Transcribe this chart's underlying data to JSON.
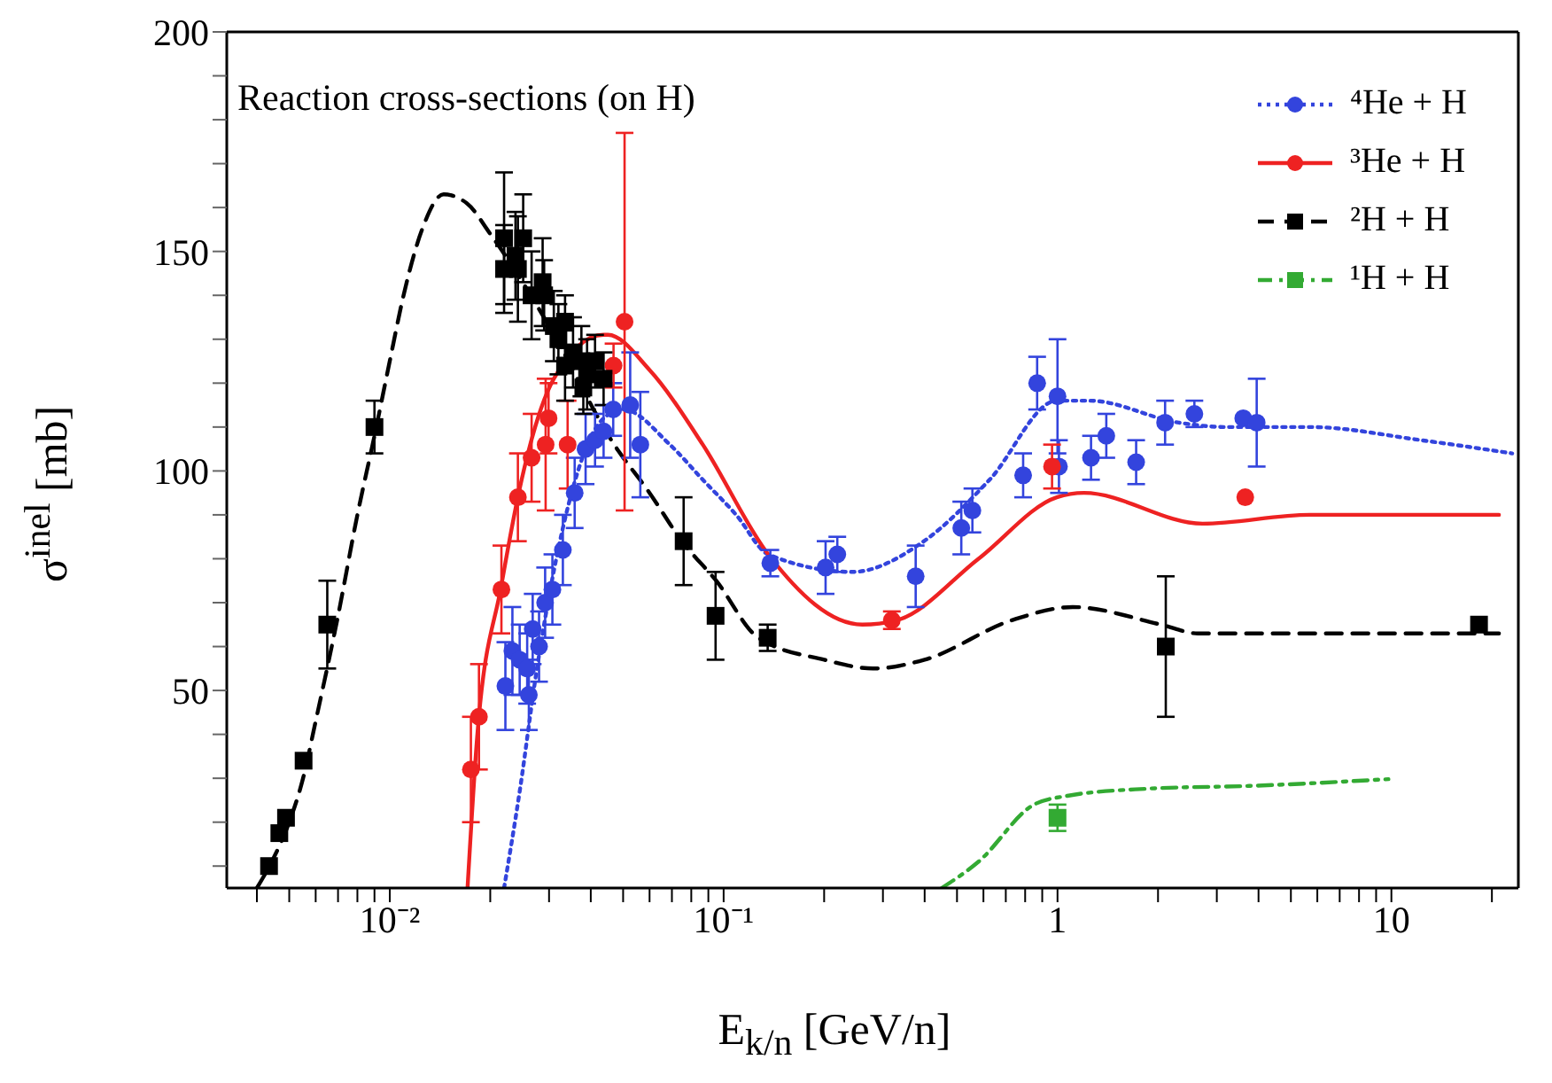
{
  "chart_data": {
    "type": "scatter",
    "title": "Reaction cross-sections (on H)",
    "xlabel": "E$_{k/n}$ [GeV/n]",
    "ylabel": "σ$^{inel}$ [mb]",
    "log": "x",
    "xlim": [
      0.00325,
      24
    ],
    "ylim": [
      5,
      200
    ],
    "xticks": [
      {
        "value": 0.004,
        "label": null
      },
      {
        "value": 0.005,
        "label": null
      },
      {
        "value": 0.006,
        "label": null
      },
      {
        "value": 0.007,
        "label": null
      },
      {
        "value": 0.008,
        "label": null
      },
      {
        "value": 0.009,
        "label": null
      },
      {
        "value": 0.01,
        "label": "10⁻²"
      },
      {
        "value": 0.02,
        "label": null
      },
      {
        "value": 0.03,
        "label": null
      },
      {
        "value": 0.04,
        "label": null
      },
      {
        "value": 0.05,
        "label": null
      },
      {
        "value": 0.06,
        "label": null
      },
      {
        "value": 0.07,
        "label": null
      },
      {
        "value": 0.08,
        "label": null
      },
      {
        "value": 0.09,
        "label": null
      },
      {
        "value": 0.1,
        "label": "10⁻¹"
      },
      {
        "value": 0.2,
        "label": null
      },
      {
        "value": 0.3,
        "label": null
      },
      {
        "value": 0.4,
        "label": null
      },
      {
        "value": 0.5,
        "label": null
      },
      {
        "value": 0.6,
        "label": null
      },
      {
        "value": 0.7,
        "label": null
      },
      {
        "value": 0.8,
        "label": null
      },
      {
        "value": 0.9,
        "label": null
      },
      1,
      {
        "value": 2,
        "label": null
      },
      {
        "value": 3,
        "label": null
      },
      {
        "value": 4,
        "label": null
      },
      {
        "value": 5,
        "label": null
      },
      {
        "value": 6,
        "label": null
      },
      {
        "value": 7,
        "label": null
      },
      {
        "value": 8,
        "label": null
      },
      {
        "value": 9,
        "label": null
      },
      10,
      {
        "value": 20,
        "label": null
      }
    ],
    "yticks": [
      {
        "value": 10,
        "label": null
      },
      {
        "value": 20,
        "label": null
      },
      {
        "value": 30,
        "label": null
      },
      {
        "value": 40,
        "label": null
      },
      50,
      {
        "value": 60,
        "label": null
      },
      {
        "value": 70,
        "label": null
      },
      {
        "value": 80,
        "label": null
      },
      {
        "value": 90,
        "label": null
      },
      100,
      {
        "value": 110,
        "label": null
      },
      {
        "value": 120,
        "label": null
      },
      {
        "value": 130,
        "label": null
      },
      {
        "value": 140,
        "label": null
      },
      150,
      {
        "value": 160,
        "label": null
      },
      {
        "value": 170,
        "label": null
      },
      {
        "value": 180,
        "label": null
      },
      {
        "value": 190,
        "label": null
      },
      200
    ],
    "grid": false,
    "legend": "top right",
    "series": [
      {
        "name": "⁴He + H",
        "color": "#3344dd",
        "marker": "circle",
        "x": [
          0.0222,
          0.0233,
          0.0245,
          0.0258,
          0.0261,
          0.0268,
          0.028,
          0.0292,
          0.0307,
          0.033,
          0.0358,
          0.0386,
          0.0412,
          0.0437,
          0.0467,
          0.0525,
          0.0563,
          0.138,
          0.202,
          0.219,
          0.376,
          0.515,
          0.556,
          0.789,
          0.869,
          1.0,
          1.01,
          1.26,
          1.4,
          1.72,
          2.1,
          2.57,
          3.6,
          3.95
        ],
        "values": [
          51,
          59,
          57,
          55,
          49,
          64,
          60,
          70,
          73,
          82,
          95,
          105,
          107,
          109,
          114,
          115,
          106,
          79,
          78,
          81,
          76,
          87,
          91,
          99,
          120,
          117,
          101,
          103,
          108,
          102,
          111,
          113,
          112,
          111
        ],
        "errors": [
          10,
          10,
          8,
          8,
          8,
          8,
          8,
          8,
          8,
          8,
          8,
          8,
          6,
          6,
          6,
          12,
          12,
          3,
          6,
          4,
          7,
          6,
          5,
          5,
          6,
          13,
          6,
          5,
          5,
          5,
          5,
          3,
          null,
          10
        ]
      },
      {
        "type": "line",
        "color": "#3344dd",
        "line_style": "dotted",
        "x": [
          0.022,
          0.0245,
          0.0276,
          0.033,
          0.0437,
          0.05,
          0.069,
          0.0866,
          0.109,
          0.136,
          0.243,
          0.398,
          0.626,
          0.995,
          1.25,
          2.31,
          3.2,
          5.7,
          12.3,
          23
        ],
        "values": [
          5,
          27,
          55,
          87,
          112,
          114,
          106,
          98,
          90,
          81,
          77,
          84,
          98,
          116,
          116,
          111,
          110,
          110,
          107,
          104
        ]
      },
      {
        "name": "³He + H",
        "color": "#ee2222",
        "marker": "circle",
        "x": [
          0.0175,
          0.0185,
          0.0216,
          0.0242,
          0.0266,
          0.0299,
          0.0293,
          0.0341,
          0.0468,
          0.0505,
          0.319,
          0.963,
          3.65
        ],
        "values": [
          32,
          44,
          73,
          94,
          103,
          112,
          106,
          106,
          124,
          134,
          66,
          101,
          94
        ],
        "errors": [
          12,
          12,
          10,
          10,
          10,
          8,
          15,
          10,
          5,
          [
            91,
            177
          ],
          2,
          5,
          null
        ]
      },
      {
        "type": "line",
        "color": "#ee2222",
        "line_style": "solid",
        "x": [
          0.0171,
          0.0183,
          0.0216,
          0.0245,
          0.031,
          0.0437,
          0.045,
          0.06,
          0.0866,
          0.136,
          0.26,
          0.33,
          0.58,
          0.995,
          1.2,
          2.72,
          5.7,
          21
        ],
        "values": [
          5,
          40,
          74,
          96,
          121,
          131,
          131,
          123,
          106,
          81,
          65,
          66,
          80,
          94,
          95,
          88,
          90,
          90
        ]
      },
      {
        "name": "²H + H",
        "color": "#000000",
        "marker": "square",
        "x": [
          0.00435,
          0.00467,
          0.00489,
          0.00552,
          0.0065,
          0.009,
          0.022,
          0.0251,
          0.022,
          0.0242,
          0.0238,
          0.0266,
          0.0287,
          0.029,
          0.031,
          0.0335,
          0.032,
          0.0354,
          0.0335,
          0.0375,
          0.0412,
          0.039,
          0.0437,
          0.038,
          0.0759,
          0.0946,
          0.1355,
          2.11,
          18.3
        ],
        "values": [
          10,
          17.5,
          21,
          34,
          65,
          110,
          153,
          153,
          146,
          146,
          149,
          140,
          143,
          140,
          133,
          134,
          130,
          127,
          124,
          125,
          125,
          122,
          121,
          119,
          84,
          67,
          62,
          60,
          65
        ],
        "errors": [
          null,
          null,
          null,
          null,
          10,
          6,
          15,
          10,
          10,
          12,
          10,
          10,
          10,
          8,
          8,
          6,
          8,
          8,
          8,
          8,
          6,
          8,
          6,
          6,
          10,
          10,
          3,
          16,
          null
        ]
      },
      {
        "type": "line",
        "color": "#000000",
        "line_style": "dashed",
        "x": [
          0.004,
          0.0045,
          0.005,
          0.0055,
          0.006,
          0.007,
          0.008,
          0.009,
          0.01,
          0.011,
          0.0125,
          0.0145,
          0.017,
          0.02,
          0.025,
          0.03,
          0.047,
          0.06,
          0.075,
          0.095,
          0.127,
          0.2,
          0.28,
          0.4,
          0.73,
          1.11,
          2.04,
          2.63,
          21
        ],
        "values": [
          5,
          12,
          20,
          30,
          43,
          67,
          90,
          108,
          125,
          140,
          155,
          163,
          161,
          154,
          143,
          133,
          106,
          95,
          84,
          75,
          62,
          57,
          55,
          57,
          66,
          69,
          65,
          63,
          63
        ]
      },
      {
        "name": "¹H + H",
        "color": "#33aa33",
        "marker": "square",
        "x": [
          1.0
        ],
        "values": [
          21
        ],
        "errors": [
          3
        ]
      },
      {
        "type": "line",
        "color": "#33aa33",
        "line_style": "dashdot",
        "x": [
          0.45,
          0.58,
          0.85,
          1.07,
          1.83,
          3.9,
          9.8
        ],
        "values": [
          5,
          11,
          24,
          26,
          27.6,
          28.3,
          29.8
        ]
      }
    ]
  }
}
